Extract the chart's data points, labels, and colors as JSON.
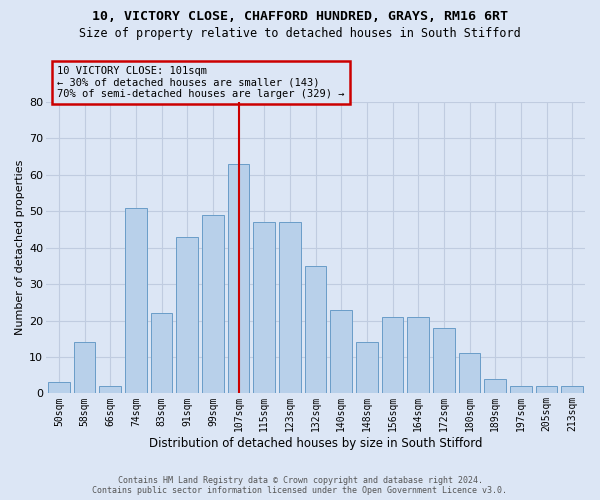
{
  "title_line1": "10, VICTORY CLOSE, CHAFFORD HUNDRED, GRAYS, RM16 6RT",
  "title_line2": "Size of property relative to detached houses in South Stifford",
  "xlabel": "Distribution of detached houses by size in South Stifford",
  "ylabel": "Number of detached properties",
  "categories": [
    "50sqm",
    "58sqm",
    "66sqm",
    "74sqm",
    "83sqm",
    "91sqm",
    "99sqm",
    "107sqm",
    "115sqm",
    "123sqm",
    "132sqm",
    "140sqm",
    "148sqm",
    "156sqm",
    "164sqm",
    "172sqm",
    "180sqm",
    "189sqm",
    "197sqm",
    "205sqm",
    "213sqm"
  ],
  "values": [
    3,
    14,
    2,
    51,
    22,
    43,
    49,
    63,
    47,
    47,
    35,
    23,
    14,
    21,
    21,
    18,
    11,
    4,
    2,
    2,
    2
  ],
  "bar_color": "#b8d0ea",
  "bar_edge_color": "#6a9dc8",
  "grid_color": "#c0cce0",
  "background_color": "#dce6f5",
  "vline_x": 7,
  "vline_color": "#cc0000",
  "annotation_line1": "10 VICTORY CLOSE: 101sqm",
  "annotation_line2": "← 30% of detached houses are smaller (143)",
  "annotation_line3": "70% of semi-detached houses are larger (329) →",
  "annotation_box_color": "#cc0000",
  "ylim": [
    0,
    80
  ],
  "yticks": [
    0,
    10,
    20,
    30,
    40,
    50,
    60,
    70,
    80
  ],
  "footer_line1": "Contains HM Land Registry data © Crown copyright and database right 2024.",
  "footer_line2": "Contains public sector information licensed under the Open Government Licence v3.0."
}
